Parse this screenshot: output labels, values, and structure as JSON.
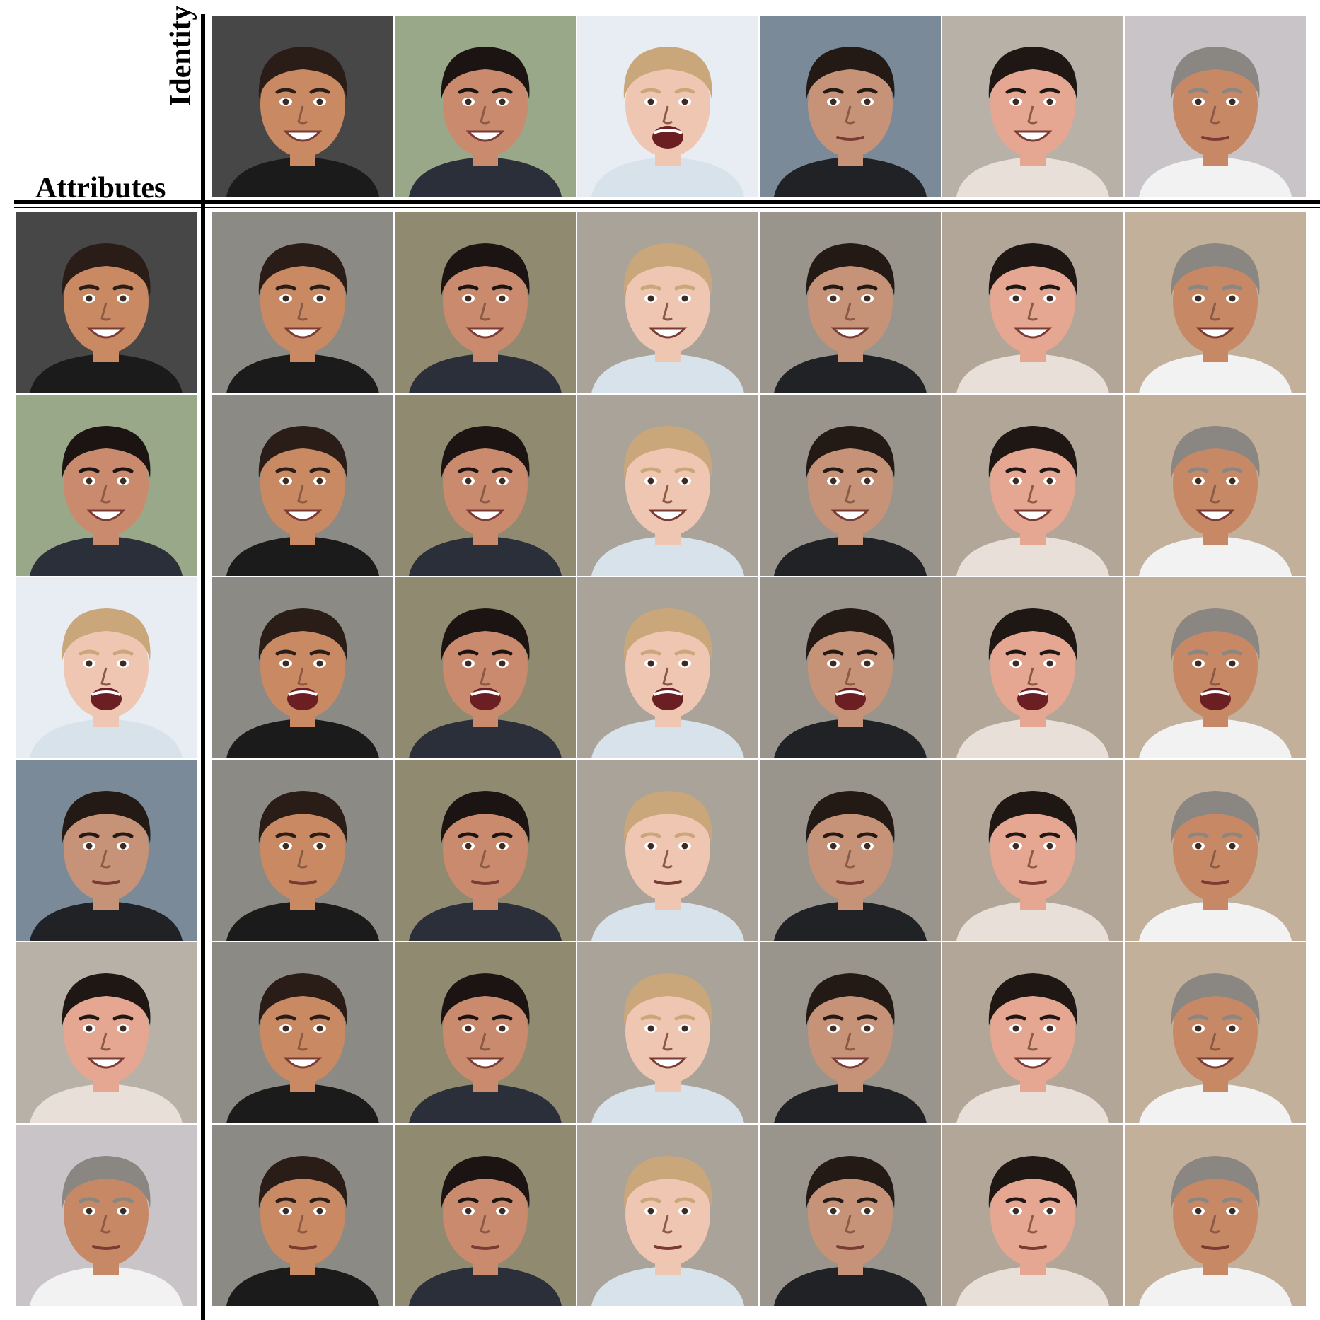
{
  "labels": {
    "attributes": "Attributes",
    "identity": "Identity"
  },
  "identities": [
    {
      "icon": "face-man-dark-hair-smiling",
      "skin": "#c98a63",
      "hair": "#2a1d17",
      "bg": "#474747",
      "shirt": "#1b1b1b"
    },
    {
      "icon": "face-woman-dark-hair-smiling",
      "skin": "#c98a6d",
      "hair": "#1c1412",
      "bg": "#9aa88a",
      "shirt": "#2b2f3a"
    },
    {
      "icon": "face-boy-blond-hair-open-mouth",
      "skin": "#efc6b1",
      "hair": "#c9a77a",
      "bg": "#e7edf2",
      "shirt": "#d8e2ea"
    },
    {
      "icon": "face-man-short-dark-hair",
      "skin": "#c79378",
      "hair": "#241a15",
      "bg": "#7a8a98",
      "shirt": "#202226"
    },
    {
      "icon": "face-woman-dark-hair-tied-back",
      "skin": "#e5a791",
      "hair": "#1e1714",
      "bg": "#b8b1a8",
      "shirt": "#e8e0d8"
    },
    {
      "icon": "face-man-gray-hair",
      "skin": "#c78866",
      "hair": "#8a8682",
      "bg": "#c9c4c8",
      "shirt": "#f2f2f2"
    }
  ],
  "attributes": [
    {
      "icon": "face-man-dark-hair-smiling",
      "skin": "#c98a63",
      "hair": "#2a1d17",
      "bg": "#474747",
      "shirt": "#1b1b1b"
    },
    {
      "icon": "face-woman-dark-hair-smiling",
      "skin": "#c98a6d",
      "hair": "#1c1412",
      "bg": "#9aa88a",
      "shirt": "#2b2f3a"
    },
    {
      "icon": "face-boy-blond-hair-open-mouth",
      "skin": "#efc6b1",
      "hair": "#c9a77a",
      "bg": "#e7edf2",
      "shirt": "#d8e2ea"
    },
    {
      "icon": "face-man-short-dark-hair",
      "skin": "#c79378",
      "hair": "#241a15",
      "bg": "#7a8a98",
      "shirt": "#202226"
    },
    {
      "icon": "face-woman-dark-hair-tied-back",
      "skin": "#e5a791",
      "hair": "#1e1714",
      "bg": "#b8b1a8",
      "shirt": "#e8e0d8"
    },
    {
      "icon": "face-man-gray-hair",
      "skin": "#c78866",
      "hair": "#8a8682",
      "bg": "#c9c4c8",
      "shirt": "#f2f2f2"
    }
  ],
  "generated": {
    "icon": "generated-face",
    "backgrounds": [
      "#8c8a84",
      "#8f8a70",
      "#a9a39a",
      "#9a958c",
      "#b2a698",
      "#c2b09a"
    ]
  }
}
